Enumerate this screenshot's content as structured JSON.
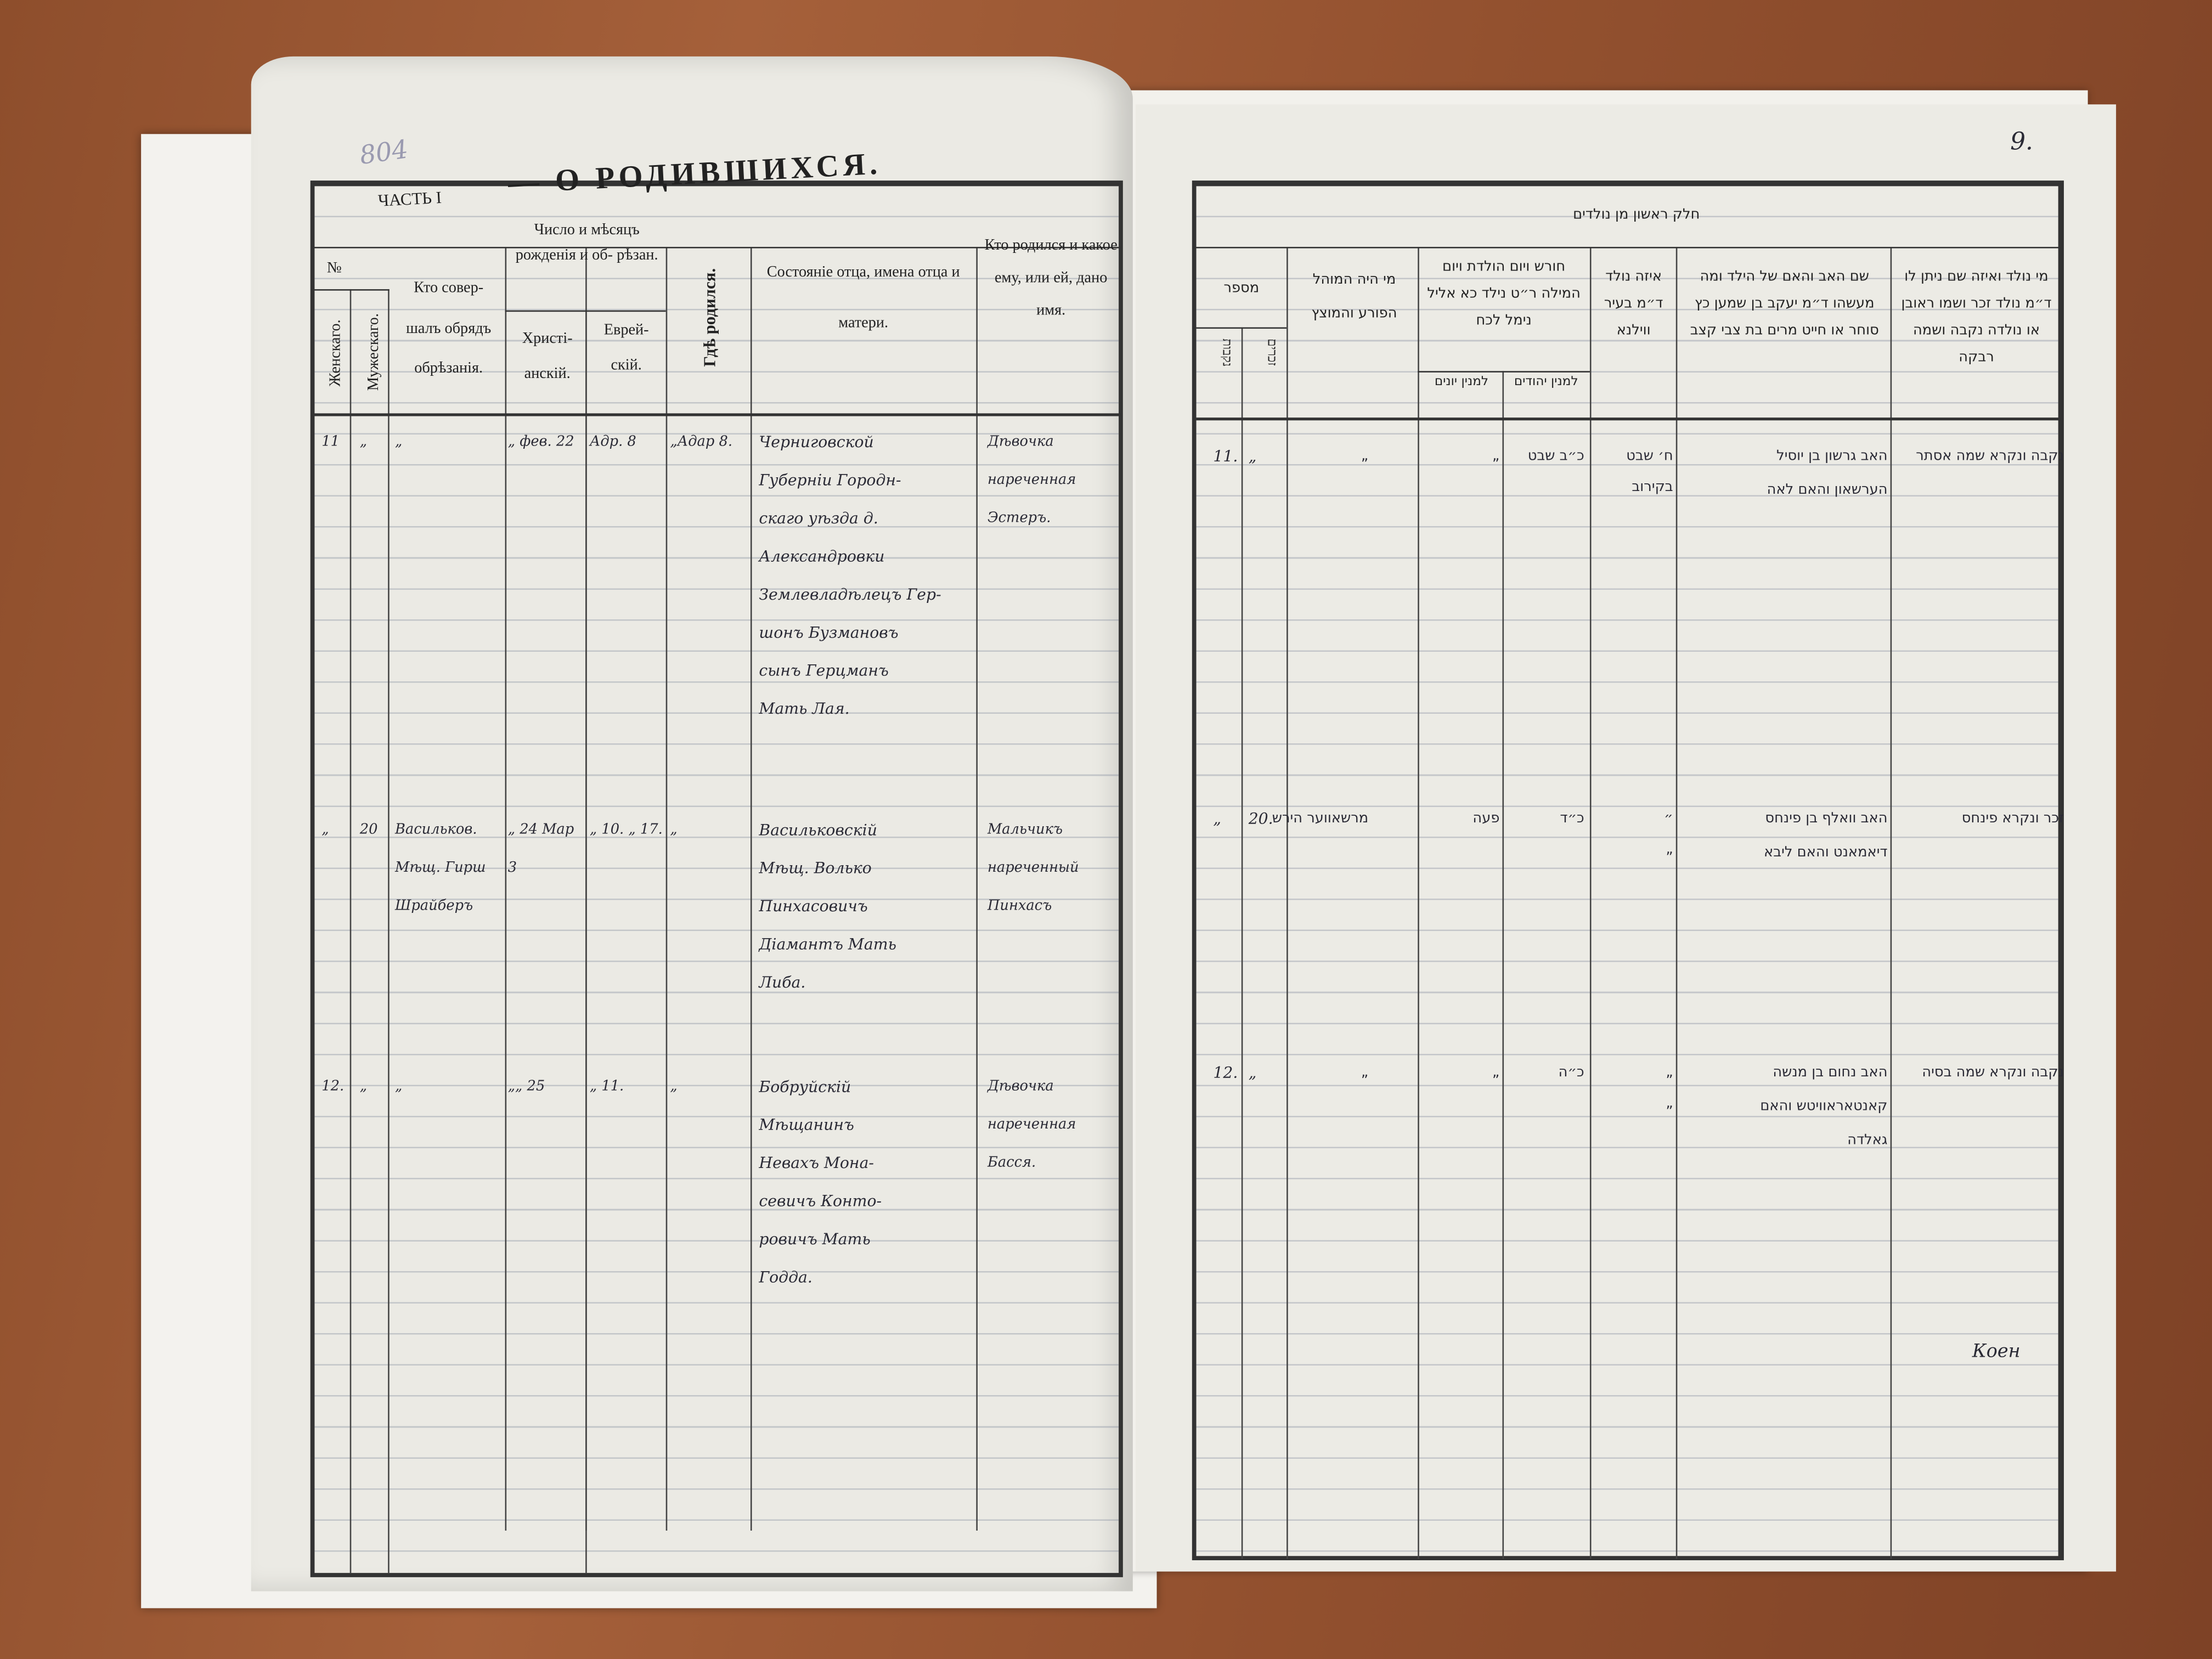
{
  "left_page": {
    "pencil_mark": "804",
    "part_label": "ЧАСТЬ I",
    "title": "— О РОДИВШИХСЯ.",
    "headers": {
      "number": "№",
      "female": "Женскаго.",
      "male": "Мужескаго.",
      "performer": "Кто совер- шалъ обрядъ обрѣзанія.",
      "date_group": "Число и мѣсяцъ рожденія и об- рѣзан.",
      "christian": "Христі- анскій.",
      "jewish": "Еврей- скій.",
      "birthplace": "Гдѣ родился.",
      "parents": "Состояніе отца, имена отца и матери.",
      "child": "Кто родился и какое ему, или ей, дано имя."
    },
    "entries": [
      {
        "female": "11",
        "male": "„",
        "performer": "„",
        "christian": "„ фев. 22",
        "jewish": "Адр. 8",
        "birthplace": "„Адар 8.",
        "parents": [
          "Черниговской",
          "Губерніи Городн-",
          "скаго уѣзда д.",
          "Александровки",
          "Землевладѣлецъ Гер-",
          "шонъ Бузмановъ",
          "сынъ Герцманъ",
          "Мать Лая."
        ],
        "child": [
          "Дѣвочка",
          "нареченная",
          "Эстеръ."
        ]
      },
      {
        "female": "„",
        "male": "20",
        "performer": "Васильков. Мѣщ. Гирш Шрайберъ",
        "christian": "„ 24 Мар 3",
        "jewish": "„ 10. „ 17.",
        "birthplace": "„",
        "parents": [
          "Васильковскій",
          "Мѣщ. Волько",
          "Пинхасовичъ",
          "Діамантъ Мать",
          "Либа."
        ],
        "child": [
          "Мальчикъ",
          "нареченный",
          "Пинхасъ"
        ]
      },
      {
        "female": "12.",
        "male": "„",
        "performer": "„",
        "christian": "„„ 25",
        "jewish": "„ 11.",
        "birthplace": "„",
        "parents": [
          "Бобруйскій",
          "Мѣщанинъ",
          "Невахъ Мона-",
          "севичъ Конто-",
          "ровичъ Мать",
          "Годда."
        ],
        "child": [
          "Дѣвочка",
          "нареченная",
          "Басся."
        ]
      }
    ]
  },
  "right_page": {
    "page_number": "9.",
    "title": "חלק ראשון מן נולדים",
    "headers": {
      "number": "מספר",
      "male": "זכרים",
      "female": "נקבות",
      "mohel": "מי היה המוהל הפורע והמוצץ",
      "dates": "חורש ויום הולדת ויום המילה ר״ט נילד כא אליל נימל לכח",
      "dates_jewish": "למנין יהודים",
      "dates_gentile": "למנין יונים",
      "place": "איזה נולד ד״מ בעיר ווילנא",
      "parents": "שם האב והאם של הילד ומה מעשהו ד״מ יעקב בן שמען כץ סוחר או חייט מרים בת צבי קצב",
      "child": "מי נולד ואיזה שם ניתן לו ד״מ נולד זכר ושמו ראובן או נולדה נקבה ושמה רבקה"
    },
    "entries": [
      {
        "number": "11.",
        "male": "„",
        "mohel": "„",
        "gentile": "„",
        "jewish": "כ״ב שבט",
        "place": "ח׳ שבט",
        "town": "בקירוב",
        "parents": [
          "האב גרשון בן יוסיל",
          "הערשאון והאם לאה"
        ],
        "child": "נקבה ונקרא שמה אסתר"
      },
      {
        "number": "„",
        "male": "20.",
        "mohel": "מרשאווער הירש",
        "gentile": "פעה",
        "jewish": "כ״ד",
        "place": "״",
        "town": "„",
        "parents": [
          "האב וואלף בן פינחס",
          "דיאמאנט והאם ליבא"
        ],
        "child": "זכר ונקרא פינחס"
      },
      {
        "number": "12.",
        "male": "„",
        "mohel": "„",
        "gentile": "„",
        "jewish": "כ״ה",
        "place": "„",
        "town": "„",
        "parents": [
          "האב נחום בן מנשה",
          "קאנטאראוויטש והאם",
          "גאלדה"
        ],
        "child": "נקבה ונקרא שמה בסיה"
      }
    ],
    "signature": "Коен"
  }
}
